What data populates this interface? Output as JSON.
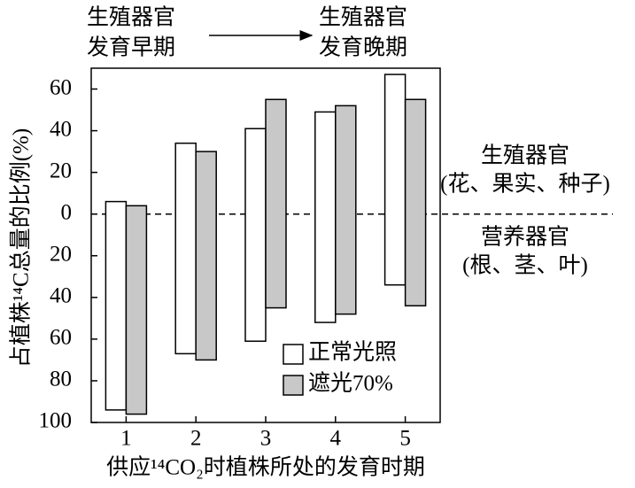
{
  "chart_data": {
    "type": "range-bar",
    "ylabel": "占植株¹⁴C总量的比例(%)",
    "xlabel": "供应¹⁴CO₂时植株所处的发育时期",
    "top_left_label": [
      "生殖器官",
      "发育早期"
    ],
    "top_right_label": [
      "生殖器官",
      "发育晚期"
    ],
    "upper_region_label": [
      "生殖器官",
      "(花、果实、种子)"
    ],
    "lower_region_label": [
      "营养器官",
      "(根、茎、叶)"
    ],
    "categories": [
      "1",
      "2",
      "3",
      "4",
      "5"
    ],
    "series": [
      {
        "name": "正常光照",
        "color": "#ffffff",
        "reproductive": [
          6,
          34,
          41,
          49,
          67
        ],
        "vegetative": [
          -94,
          -67,
          -61,
          -52,
          -34
        ]
      },
      {
        "name": "遮光70%",
        "color": "#c8c8c8",
        "reproductive": [
          4,
          30,
          55,
          52,
          55
        ],
        "vegetative": [
          -96,
          -70,
          -45,
          -48,
          -44
        ]
      }
    ],
    "ylim": [
      -100,
      70
    ],
    "yticks": [
      60,
      40,
      20,
      0,
      {
        "value": -20,
        "label": "20"
      },
      {
        "value": -40,
        "label": "40"
      },
      {
        "value": -60,
        "label": "60"
      },
      {
        "value": -80,
        "label": "80"
      },
      {
        "value": -100,
        "label": "100"
      }
    ],
    "zero_line": "dashed"
  }
}
